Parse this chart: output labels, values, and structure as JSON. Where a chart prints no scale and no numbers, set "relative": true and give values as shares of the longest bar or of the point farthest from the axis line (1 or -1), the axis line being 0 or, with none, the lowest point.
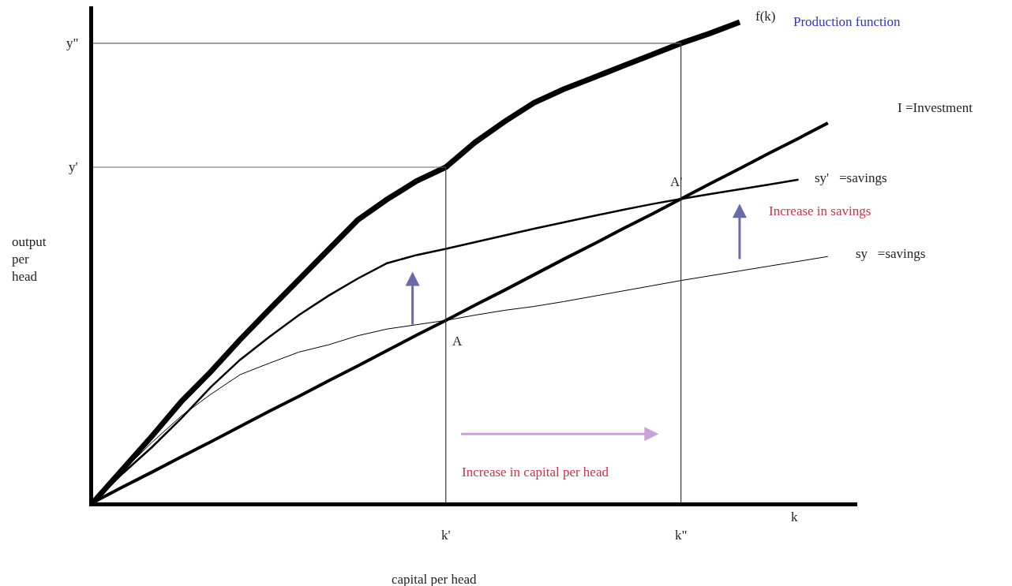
{
  "chart_data": {
    "type": "line",
    "relative": true,
    "xlabel": "capital per head",
    "ylabel": "output per head",
    "categories": [
      null,
      null,
      null,
      null,
      null,
      null,
      null,
      null,
      null,
      null,
      null,
      null,
      "k'",
      null,
      null,
      null,
      null,
      null,
      null,
      null,
      "k\"",
      null,
      null,
      null,
      null,
      null,
      null
    ],
    "series": [
      {
        "name": "f(k)",
        "color": "#000000",
        "values": [
          0,
          0.069,
          0.138,
          0.21,
          0.272,
          0.339,
          0.402,
          0.464,
          0.526,
          0.588,
          0.631,
          0.669,
          0.698,
          0.75,
          0.793,
          0.832,
          0.86,
          0.884,
          0.908,
          0.932,
          0.956,
          0.977,
          1,
          null,
          null,
          null,
          null
        ]
      },
      {
        "name": "I =Investment",
        "color": "#000000",
        "values": [
          0,
          0.032,
          0.063,
          0.095,
          0.126,
          0.158,
          0.19,
          0.221,
          0.253,
          0.284,
          0.316,
          0.348,
          0.379,
          0.411,
          0.442,
          0.474,
          0.506,
          0.537,
          0.569,
          0.6,
          0.632,
          0.664,
          0.695,
          0.727,
          0.758,
          0.79,
          null
        ]
      },
      {
        "name": "sy'   =savings",
        "color": "#000000",
        "values": [
          0,
          0.06,
          0.115,
          0.175,
          0.24,
          0.297,
          0.345,
          0.39,
          0.43,
          0.466,
          0.498,
          0.515,
          0.528,
          0.542,
          0.556,
          0.57,
          0.583,
          0.596,
          0.609,
          0.621,
          0.632,
          0.642,
          0.652,
          0.662,
          0.672,
          null,
          null
        ]
      },
      {
        "name": "sy   =savings",
        "color": "#000000",
        "values": [
          0,
          0.065,
          0.125,
          0.18,
          0.225,
          0.266,
          0.29,
          0.313,
          0.328,
          0.347,
          0.361,
          0.37,
          0.379,
          0.39,
          0.4,
          0.408,
          0.418,
          0.429,
          0.44,
          0.451,
          0.462,
          0.472,
          0.482,
          0.492,
          0.502,
          0.512,
          null
        ]
      }
    ],
    "ref_lines": [
      {
        "axis": "x",
        "value": "k'",
        "color": "#333333"
      },
      {
        "axis": "x",
        "value": "k\"",
        "color": "#333333"
      },
      {
        "axis": "y",
        "value": 0.698,
        "label": "y'",
        "color": "#666666"
      },
      {
        "axis": "y",
        "value": 0.956,
        "label": "y\"",
        "color": "#666666"
      }
    ],
    "annotations": [
      "Production function",
      "Increase in savings",
      {
        "text": "A'",
        "x": "k\"",
        "y": 0.632
      },
      {
        "text": "A",
        "x": "k'",
        "y": 0.379
      },
      "Increase in capital per head",
      "k"
    ]
  }
}
